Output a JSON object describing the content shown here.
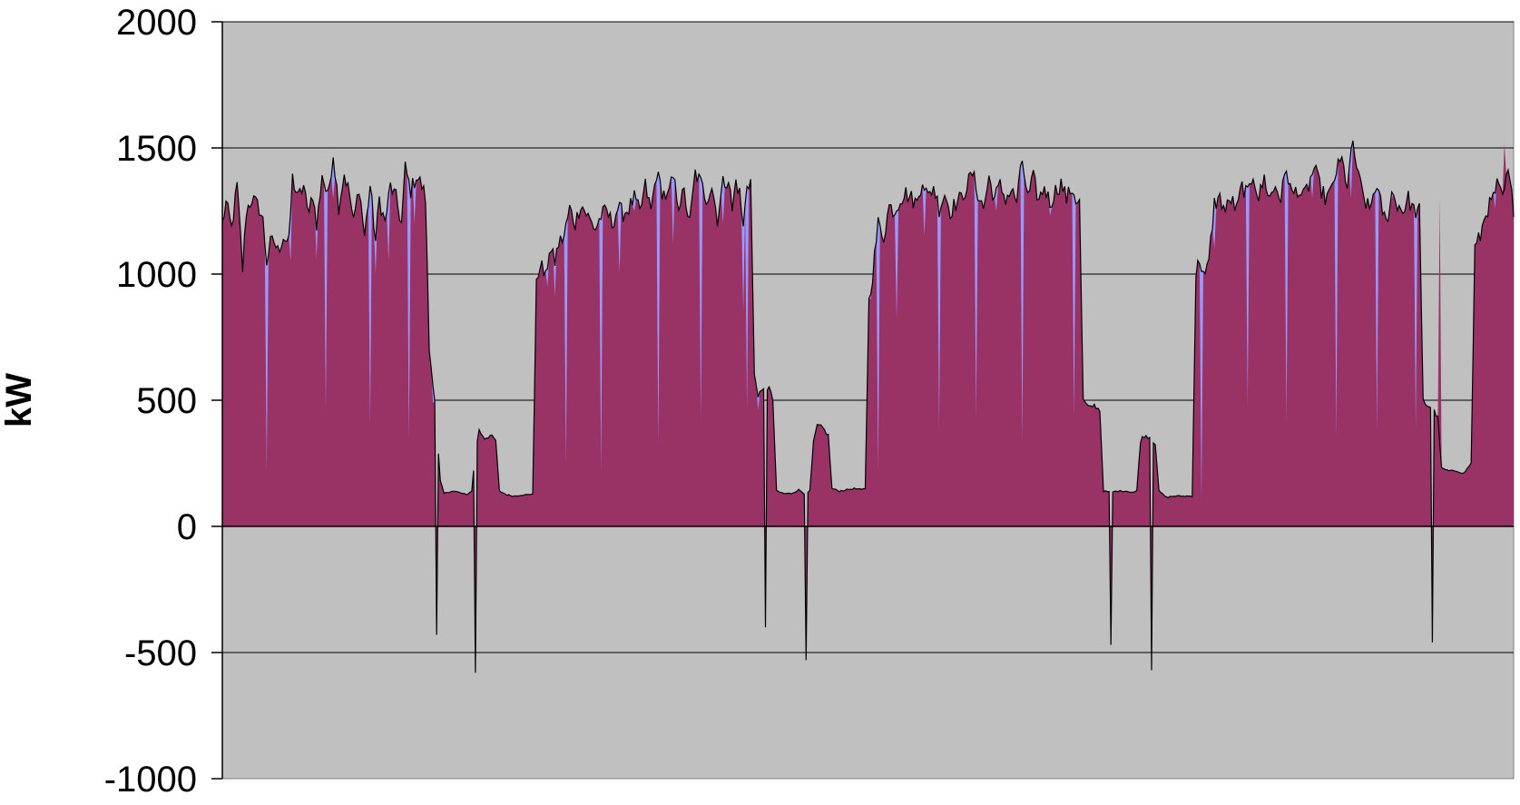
{
  "chart_data": {
    "type": "area",
    "title": "",
    "xlabel": "",
    "ylabel": "kW",
    "ylim": [
      -1000,
      2000
    ],
    "yticks": [
      -1000,
      -500,
      0,
      500,
      1000,
      1500,
      2000
    ],
    "grid": true,
    "legend": "none",
    "colors": {
      "plot_background": "#c0c0c0",
      "series_primary": "#993366",
      "series_secondary": "#9999ff",
      "outline": "#000000",
      "gridline": "#000000"
    },
    "x_count": 700,
    "series": [
      {
        "role": "outline-total",
        "anchors": [
          [
            0,
            1200
          ],
          [
            2,
            1280
          ],
          [
            5,
            1180
          ],
          [
            8,
            1350
          ],
          [
            11,
            1020
          ],
          [
            13,
            1250
          ],
          [
            16,
            1300
          ],
          [
            20,
            1260
          ],
          [
            22,
            1210
          ],
          [
            24,
            1050
          ],
          [
            26,
            1120
          ],
          [
            28,
            1130
          ],
          [
            30,
            1090
          ],
          [
            33,
            1150
          ],
          [
            36,
            1120
          ],
          [
            38,
            1380
          ],
          [
            41,
            1300
          ],
          [
            44,
            1350
          ],
          [
            46,
            1250
          ],
          [
            49,
            1320
          ],
          [
            51,
            1180
          ],
          [
            54,
            1400
          ],
          [
            57,
            1300
          ],
          [
            60,
            1480
          ],
          [
            63,
            1270
          ],
          [
            66,
            1400
          ],
          [
            69,
            1310
          ],
          [
            71,
            1200
          ],
          [
            74,
            1350
          ],
          [
            77,
            1150
          ],
          [
            80,
            1350
          ],
          [
            83,
            1130
          ],
          [
            85,
            1300
          ],
          [
            88,
            1200
          ],
          [
            91,
            1350
          ],
          [
            94,
            1300
          ],
          [
            97,
            1200
          ],
          [
            99,
            1420
          ],
          [
            102,
            1330
          ],
          [
            105,
            1390
          ],
          [
            108,
            1350
          ],
          [
            110,
            1300
          ],
          [
            112,
            700
          ],
          [
            115,
            500
          ],
          [
            118,
            180
          ],
          [
            120,
            130
          ],
          [
            124,
            140
          ],
          [
            128,
            135
          ],
          [
            132,
            125
          ],
          [
            135,
            140
          ],
          [
            137,
            300
          ],
          [
            139,
            380
          ],
          [
            142,
            350
          ],
          [
            145,
            360
          ],
          [
            148,
            340
          ],
          [
            150,
            140
          ],
          [
            154,
            125
          ],
          [
            158,
            120
          ],
          [
            162,
            125
          ],
          [
            166,
            125
          ],
          [
            168,
            130
          ],
          [
            170,
            950
          ],
          [
            172,
            1050
          ],
          [
            175,
            980
          ],
          [
            177,
            1100
          ],
          [
            180,
            1050
          ],
          [
            182,
            1120
          ],
          [
            185,
            1150
          ],
          [
            188,
            1260
          ],
          [
            191,
            1200
          ],
          [
            194,
            1280
          ],
          [
            197,
            1240
          ],
          [
            200,
            1200
          ],
          [
            202,
            1180
          ],
          [
            205,
            1230
          ],
          [
            208,
            1250
          ],
          [
            211,
            1200
          ],
          [
            214,
            1260
          ],
          [
            217,
            1240
          ],
          [
            220,
            1260
          ],
          [
            223,
            1300
          ],
          [
            226,
            1240
          ],
          [
            229,
            1350
          ],
          [
            232,
            1250
          ],
          [
            235,
            1400
          ],
          [
            238,
            1330
          ],
          [
            241,
            1300
          ],
          [
            244,
            1380
          ],
          [
            247,
            1280
          ],
          [
            250,
            1320
          ],
          [
            253,
            1200
          ],
          [
            256,
            1400
          ],
          [
            259,
            1360
          ],
          [
            262,
            1300
          ],
          [
            265,
            1350
          ],
          [
            268,
            1220
          ],
          [
            271,
            1360
          ],
          [
            274,
            1380
          ],
          [
            276,
            1250
          ],
          [
            278,
            1370
          ],
          [
            280,
            1320
          ],
          [
            282,
            1180
          ],
          [
            284,
            1360
          ],
          [
            286,
            1370
          ],
          [
            288,
            600
          ],
          [
            290,
            520
          ],
          [
            293,
            540
          ],
          [
            296,
            550
          ],
          [
            298,
            500
          ],
          [
            300,
            140
          ],
          [
            304,
            130
          ],
          [
            308,
            130
          ],
          [
            312,
            145
          ],
          [
            316,
            125
          ],
          [
            318,
            140
          ],
          [
            320,
            330
          ],
          [
            322,
            400
          ],
          [
            325,
            390
          ],
          [
            328,
            360
          ],
          [
            330,
            150
          ],
          [
            334,
            140
          ],
          [
            338,
            145
          ],
          [
            342,
            150
          ],
          [
            346,
            145
          ],
          [
            348,
            150
          ],
          [
            350,
            900
          ],
          [
            352,
            1000
          ],
          [
            355,
            1200
          ],
          [
            358,
            1150
          ],
          [
            361,
            1270
          ],
          [
            364,
            1250
          ],
          [
            367,
            1300
          ],
          [
            370,
            1320
          ],
          [
            373,
            1300
          ],
          [
            376,
            1280
          ],
          [
            379,
            1380
          ],
          [
            382,
            1300
          ],
          [
            385,
            1350
          ],
          [
            388,
            1260
          ],
          [
            391,
            1320
          ],
          [
            394,
            1250
          ],
          [
            397,
            1280
          ],
          [
            400,
            1300
          ],
          [
            403,
            1350
          ],
          [
            406,
            1400
          ],
          [
            409,
            1320
          ],
          [
            412,
            1260
          ],
          [
            415,
            1380
          ],
          [
            418,
            1300
          ],
          [
            421,
            1350
          ],
          [
            424,
            1300
          ],
          [
            427,
            1330
          ],
          [
            430,
            1290
          ],
          [
            433,
            1450
          ],
          [
            436,
            1300
          ],
          [
            439,
            1380
          ],
          [
            442,
            1290
          ],
          [
            445,
            1350
          ],
          [
            448,
            1280
          ],
          [
            451,
            1330
          ],
          [
            454,
            1360
          ],
          [
            457,
            1300
          ],
          [
            460,
            1340
          ],
          [
            462,
            1300
          ],
          [
            464,
            1280
          ],
          [
            466,
            500
          ],
          [
            469,
            470
          ],
          [
            472,
            480
          ],
          [
            475,
            460
          ],
          [
            477,
            140
          ],
          [
            481,
            135
          ],
          [
            485,
            140
          ],
          [
            489,
            140
          ],
          [
            493,
            135
          ],
          [
            495,
            140
          ],
          [
            497,
            340
          ],
          [
            499,
            360
          ],
          [
            502,
            355
          ],
          [
            505,
            330
          ],
          [
            507,
            140
          ],
          [
            511,
            115
          ],
          [
            515,
            120
          ],
          [
            519,
            120
          ],
          [
            523,
            120
          ],
          [
            525,
            120
          ],
          [
            527,
            1000
          ],
          [
            529,
            1060
          ],
          [
            532,
            980
          ],
          [
            534,
            1050
          ],
          [
            537,
            1280
          ],
          [
            540,
            1300
          ],
          [
            543,
            1250
          ],
          [
            546,
            1300
          ],
          [
            549,
            1250
          ],
          [
            552,
            1350
          ],
          [
            555,
            1310
          ],
          [
            558,
            1400
          ],
          [
            561,
            1300
          ],
          [
            564,
            1380
          ],
          [
            567,
            1300
          ],
          [
            570,
            1350
          ],
          [
            573,
            1300
          ],
          [
            576,
            1420
          ],
          [
            579,
            1310
          ],
          [
            582,
            1340
          ],
          [
            585,
            1300
          ],
          [
            588,
            1350
          ],
          [
            591,
            1420
          ],
          [
            594,
            1350
          ],
          [
            597,
            1300
          ],
          [
            600,
            1320
          ],
          [
            603,
            1410
          ],
          [
            606,
            1450
          ],
          [
            609,
            1350
          ],
          [
            612,
            1520
          ],
          [
            615,
            1380
          ],
          [
            618,
            1300
          ],
          [
            621,
            1250
          ],
          [
            624,
            1350
          ],
          [
            627,
            1280
          ],
          [
            630,
            1200
          ],
          [
            633,
            1320
          ],
          [
            636,
            1280
          ],
          [
            639,
            1250
          ],
          [
            642,
            1300
          ],
          [
            645,
            1250
          ],
          [
            648,
            1250
          ],
          [
            650,
            500
          ],
          [
            652,
            480
          ],
          [
            655,
            470
          ],
          [
            658,
            430
          ],
          [
            660,
            230
          ],
          [
            664,
            220
          ],
          [
            668,
            220
          ],
          [
            672,
            210
          ],
          [
            674,
            230
          ],
          [
            676,
            250
          ],
          [
            678,
            1100
          ],
          [
            681,
            1150
          ],
          [
            684,
            1250
          ],
          [
            687,
            1280
          ],
          [
            690,
            1350
          ],
          [
            693,
            1300
          ],
          [
            696,
            1400
          ],
          [
            699,
            1260
          ]
        ]
      }
    ],
    "dips": [
      [
        24,
        220
      ],
      [
        37,
        1050
      ],
      [
        51,
        1060
      ],
      [
        56,
        460
      ],
      [
        60,
        1300
      ],
      [
        80,
        400
      ],
      [
        83,
        1000
      ],
      [
        90,
        1050
      ],
      [
        101,
        340
      ],
      [
        104,
        1200
      ],
      [
        114,
        490
      ],
      [
        116,
        -430
      ],
      [
        137,
        -580
      ],
      [
        176,
        950
      ],
      [
        180,
        910
      ],
      [
        186,
        240
      ],
      [
        205,
        210
      ],
      [
        215,
        1000
      ],
      [
        223,
        1250
      ],
      [
        236,
        320
      ],
      [
        244,
        1120
      ],
      [
        259,
        420
      ],
      [
        271,
        1200
      ],
      [
        282,
        850
      ],
      [
        284,
        460
      ],
      [
        290,
        460
      ],
      [
        294,
        -400
      ],
      [
        316,
        -530
      ],
      [
        351,
        900
      ],
      [
        355,
        220
      ],
      [
        365,
        820
      ],
      [
        380,
        1150
      ],
      [
        388,
        390
      ],
      [
        408,
        430
      ],
      [
        419,
        1250
      ],
      [
        433,
        330
      ],
      [
        448,
        1230
      ],
      [
        461,
        430
      ],
      [
        464,
        1300
      ],
      [
        481,
        -470
      ],
      [
        503,
        -570
      ],
      [
        530,
        100
      ],
      [
        537,
        1100
      ],
      [
        555,
        480
      ],
      [
        576,
        420
      ],
      [
        590,
        1300
      ],
      [
        603,
        350
      ],
      [
        611,
        1300
      ],
      [
        625,
        380
      ],
      [
        633,
        1300
      ],
      [
        646,
        380
      ],
      [
        659,
        1300
      ],
      [
        655,
        -460
      ],
      [
        689,
        1260
      ],
      [
        694,
        1520
      ],
      [
        700,
        1300
      ]
    ]
  }
}
